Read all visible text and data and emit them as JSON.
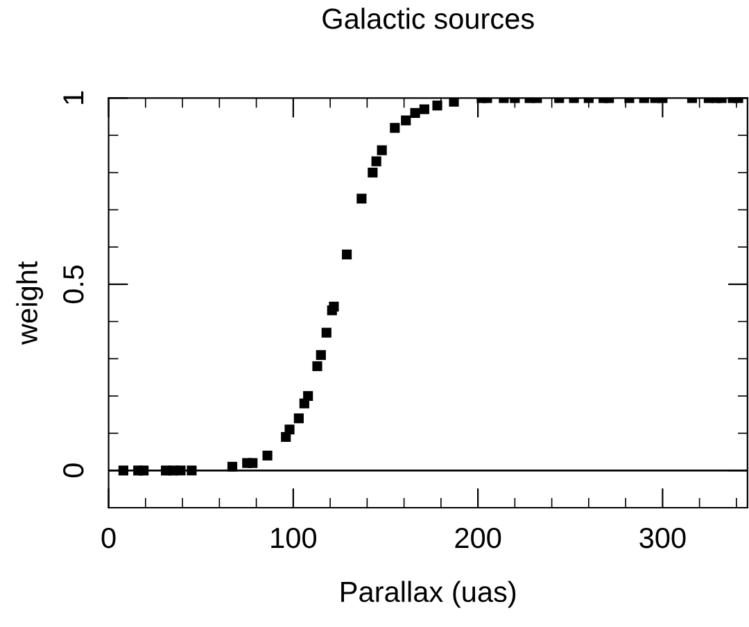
{
  "chart_data": {
    "type": "scatter",
    "title": "Galactic sources",
    "xlabel": "Parallax (uas)",
    "ylabel": "weight",
    "x": [
      8,
      16,
      19,
      31,
      35,
      39,
      45,
      67,
      75,
      78,
      86,
      96,
      98,
      103,
      106,
      108,
      113,
      115,
      118,
      121,
      122,
      129,
      137,
      143,
      145,
      148,
      155,
      161,
      166,
      171,
      178,
      187,
      202,
      205,
      214,
      220,
      228,
      232,
      244,
      252,
      260,
      268,
      271,
      282,
      290,
      296,
      300,
      316,
      325,
      329,
      332,
      338,
      341
    ],
    "series": [
      {
        "color": "#000000",
        "values": [
          0,
          0,
          0,
          0,
          0,
          0,
          0,
          0.01,
          0.02,
          0.02,
          0.04,
          0.09,
          0.11,
          0.14,
          0.18,
          0.2,
          0.28,
          0.31,
          0.37,
          0.43,
          0.44,
          0.58,
          0.73,
          0.8,
          0.83,
          0.86,
          0.92,
          0.94,
          0.96,
          0.97,
          0.98,
          0.99,
          1,
          1,
          1,
          1,
          1,
          1,
          1,
          1,
          1,
          1,
          1,
          1,
          1,
          1,
          1,
          1,
          1,
          1,
          1,
          1,
          1
        ]
      }
    ],
    "xlim": [
      0,
      346
    ],
    "ylim": [
      -0.1,
      1.0
    ],
    "xticks": [
      0,
      100,
      200,
      300
    ],
    "yticks": [
      0,
      0.5,
      1
    ],
    "ref_lines": [
      {
        "axis": "y",
        "value": 0
      }
    ],
    "marker": "square",
    "grid": false,
    "legend": false
  }
}
